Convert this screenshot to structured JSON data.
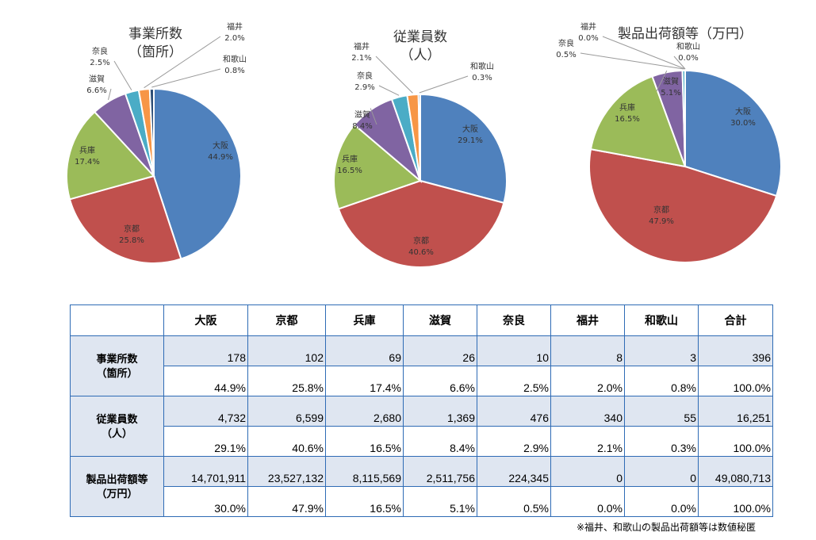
{
  "chart_data": [
    {
      "type": "pie",
      "title_lines": [
        "事業所数",
        "（箇所）"
      ],
      "series": [
        {
          "name": "大阪",
          "value": 178,
          "pct": "44.9%"
        },
        {
          "name": "京都",
          "value": 102,
          "pct": "25.8%"
        },
        {
          "name": "兵庫",
          "value": 69,
          "pct": "17.4%"
        },
        {
          "name": "滋賀",
          "value": 26,
          "pct": "6.6%"
        },
        {
          "name": "奈良",
          "value": 10,
          "pct": "2.5%"
        },
        {
          "name": "福井",
          "value": 8,
          "pct": "2.0%"
        },
        {
          "name": "和歌山",
          "value": 3,
          "pct": "0.8%"
        }
      ]
    },
    {
      "type": "pie",
      "title_lines": [
        "従業員数",
        "（人）"
      ],
      "series": [
        {
          "name": "大阪",
          "value": 4732,
          "pct": "29.1%"
        },
        {
          "name": "京都",
          "value": 6599,
          "pct": "40.6%"
        },
        {
          "name": "兵庫",
          "value": 2680,
          "pct": "16.5%"
        },
        {
          "name": "滋賀",
          "value": 1369,
          "pct": "8.4%"
        },
        {
          "name": "奈良",
          "value": 476,
          "pct": "2.9%"
        },
        {
          "name": "福井",
          "value": 340,
          "pct": "2.1%"
        },
        {
          "name": "和歌山",
          "value": 55,
          "pct": "0.3%"
        }
      ]
    },
    {
      "type": "pie",
      "title_lines": [
        "製品出荷額等（万円）"
      ],
      "series": [
        {
          "name": "大阪",
          "value": 14701911,
          "pct": "30.0%"
        },
        {
          "name": "京都",
          "value": 23527132,
          "pct": "47.9%"
        },
        {
          "name": "兵庫",
          "value": 8115569,
          "pct": "16.5%"
        },
        {
          "name": "滋賀",
          "value": 2511756,
          "pct": "5.1%"
        },
        {
          "name": "奈良",
          "value": 224345,
          "pct": "0.5%"
        },
        {
          "name": "福井",
          "value": 0,
          "pct": "0.0%"
        },
        {
          "name": "和歌山",
          "value": 0,
          "pct": "0.0%"
        }
      ]
    }
  ],
  "colors": [
    "#4f81bd",
    "#c0504d",
    "#9bbb59",
    "#8064a2",
    "#4bacc6",
    "#f79646",
    "#2c4d75"
  ],
  "table": {
    "columns": [
      "",
      "大阪",
      "京都",
      "兵庫",
      "滋賀",
      "奈良",
      "福井",
      "和歌山",
      "合計"
    ],
    "groups": [
      {
        "label": "事業所数\n（箇所）",
        "values": [
          "178",
          "102",
          "69",
          "26",
          "10",
          "8",
          "3",
          "396"
        ],
        "pcts": [
          "44.9%",
          "25.8%",
          "17.4%",
          "6.6%",
          "2.5%",
          "2.0%",
          "0.8%",
          "100.0%"
        ]
      },
      {
        "label": "従業員数\n（人）",
        "values": [
          "4,732",
          "6,599",
          "2,680",
          "1,369",
          "476",
          "340",
          "55",
          "16,251"
        ],
        "pcts": [
          "29.1%",
          "40.6%",
          "16.5%",
          "8.4%",
          "2.9%",
          "2.1%",
          "0.3%",
          "100.0%"
        ]
      },
      {
        "label": "製品出荷額等\n（万円）",
        "values": [
          "14,701,911",
          "23,527,132",
          "8,115,569",
          "2,511,756",
          "224,345",
          "0",
          "0",
          "49,080,713"
        ],
        "pcts": [
          "30.0%",
          "47.9%",
          "16.5%",
          "5.1%",
          "0.5%",
          "0.0%",
          "0.0%",
          "100.0%"
        ]
      }
    ]
  },
  "footnote": "※福井、和歌山の製品出荷額等は数値秘匿"
}
